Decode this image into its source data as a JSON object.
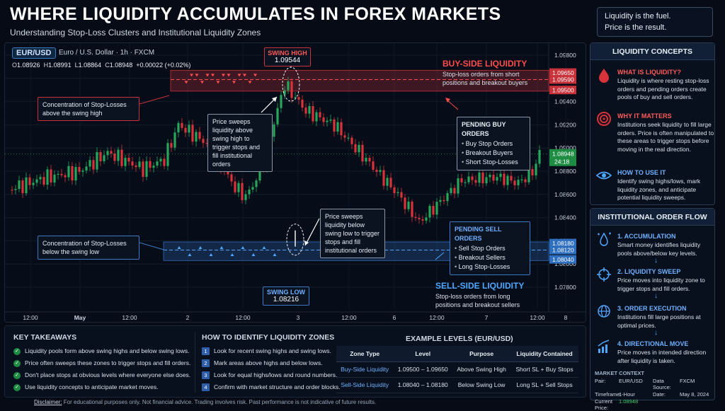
{
  "header": {
    "title": "WHERE LIQUIDITY ACCUMULATES IN FOREX MARKETS",
    "subtitle": "Understanding Stop-Loss Clusters and Institutional Liquidity Zones",
    "quote_line1": "Liquidity is the fuel.",
    "quote_line2": "Price is the result."
  },
  "chart": {
    "symbol": "EUR/USD",
    "description": "Euro / U.S. Dollar · 1h · FXCM",
    "ohlc": {
      "o_label": "O",
      "o": "1.08926",
      "h_label": "H",
      "h": "1.08991",
      "l_label": "L",
      "l": "1.08864",
      "c_label": "C",
      "c": "1.08948",
      "change": "+0.00022 (+0.02%)"
    },
    "price_axis": [
      "1.09800",
      "1.09600",
      "1.09400",
      "1.09200",
      "1.09000",
      "1.08800",
      "1.08600",
      "1.08400",
      "1.08200",
      "1.08000",
      "1.07800"
    ],
    "time_axis": [
      "12:00",
      "May",
      "12:00",
      "2",
      "12:00",
      "3",
      "12:00",
      "6",
      "12:00",
      "7",
      "12:00",
      "8"
    ],
    "current_price": "1.08948",
    "countdown": "24:18",
    "buy_levels": [
      "1.09650",
      "1.09590",
      "1.09500"
    ],
    "sell_levels": [
      "1.08180",
      "1.08120",
      "1.08040"
    ],
    "swing_high_label": "SWING HIGH",
    "swing_high_value": "1.09544",
    "swing_low_label": "SWING LOW",
    "swing_low_value": "1.08216",
    "conc_high": "Concentration of Stop-Losses above the swing high",
    "conc_low": "Concentration of Stop-Losses below the swing low",
    "sweep_high": "Price sweeps liquidity above swing high to trigger stops and fill institutional orders",
    "sweep_low": "Price sweeps liquidity below swing low to trigger stops and fill institutional orders",
    "buy_title": "BUY-SIDE LIQUIDITY",
    "buy_desc": "Stop-loss orders from short positions and breakout buyers",
    "sell_title": "SELL-SIDE LIQUIDITY",
    "sell_desc": "Stop-loss orders from long positions and breakout sellers",
    "pending_buy": {
      "title": "PENDING BUY ORDERS",
      "items": [
        "Buy Stop Orders",
        "Breakout Buyers",
        "Short Stop-Losses"
      ]
    },
    "pending_sell": {
      "title": "PENDING SELL ORDERS",
      "items": [
        "Sell Stop Orders",
        "Breakout Sellers",
        "Long Stop-Losses"
      ]
    },
    "colors": {
      "up": "#26a65b",
      "down": "#d8323a",
      "buy_zone": "#c8323a",
      "sell_zone": "#2f6fc0"
    }
  },
  "concepts": {
    "title": "LIQUIDITY CONCEPTS",
    "items": [
      {
        "heading": "WHAT IS LIQUIDITY?",
        "text": "Liquidity is where resting stop-loss orders and pending orders create pools of buy and sell orders.",
        "icon": "drop-icon"
      },
      {
        "heading": "WHY IT MATTERS",
        "text": "Institutions seek liquidity to fill large orders. Price is often manipulated to these areas to trigger stops before moving in the real direction.",
        "icon": "target-icon"
      },
      {
        "heading": "HOW TO USE IT",
        "text": "Identify swing highs/lows, mark liquidity zones, and anticipate potential liquidity sweeps.",
        "icon": "eye-icon"
      }
    ]
  },
  "flow": {
    "title": "INSTITUTIONAL ORDER FLOW",
    "steps": [
      {
        "heading": "1. ACCUMULATION",
        "text": "Smart money identifies liquidity pools above/below key levels."
      },
      {
        "heading": "2. LIQUIDITY SWEEP",
        "text": "Price moves into liquidity zone to trigger stops and fill orders."
      },
      {
        "heading": "3. ORDER EXECUTION",
        "text": "Institutions fill large positions at optimal prices."
      },
      {
        "heading": "4. DIRECTIONAL MOVE",
        "text": "Price moves in intended direction after liquidity is taken."
      }
    ],
    "arrow": "↓"
  },
  "bottom": {
    "takeaways_title": "KEY TAKEAWAYS",
    "takeaways": [
      "Liquidity pools form above swing highs and below swing lows.",
      "Price often sweeps these zones to trigger stops and fill orders.",
      "Don't place stops at obvious levels where everyone else does.",
      "Use liquidity concepts to anticipate market moves."
    ],
    "identify_title": "HOW TO IDENTIFY LIQUIDITY ZONES",
    "identify": [
      "Look for recent swing highs and swing lows.",
      "Mark areas above highs and below lows.",
      "Look for equal highs/lows and round numbers.",
      "Confirm with market structure and order blocks."
    ],
    "table_title": "EXAMPLE LEVELS (EUR/USD)",
    "table_headers": [
      "Zone Type",
      "Level",
      "Purpose",
      "Liquidity Contained"
    ],
    "table_rows": [
      [
        "Buy-Side Liquidity",
        "1.09500 – 1.09650",
        "Above Swing High",
        "Short SL + Buy Stops"
      ],
      [
        "Sell-Side Liquidity",
        "1.08040 – 1.08180",
        "Below Swing Low",
        "Long SL + Sell Stops"
      ]
    ]
  },
  "context": {
    "title": "MARKET CONTEXT",
    "pair_label": "Pair:",
    "pair": "EUR/USD",
    "source_label": "Data Source:",
    "source": "FXCM",
    "tf_label": "Timeframe:",
    "tf": "1-Hour",
    "date_label": "Date:",
    "date": "May 8, 2024",
    "price_label": "Current Price:",
    "price": "1.08948"
  },
  "disclaimer": {
    "label": "Disclaimer:",
    "text": " For educational purposes only. Not financial advice. Trading involves risk. Past performance is not indicative of future results."
  }
}
